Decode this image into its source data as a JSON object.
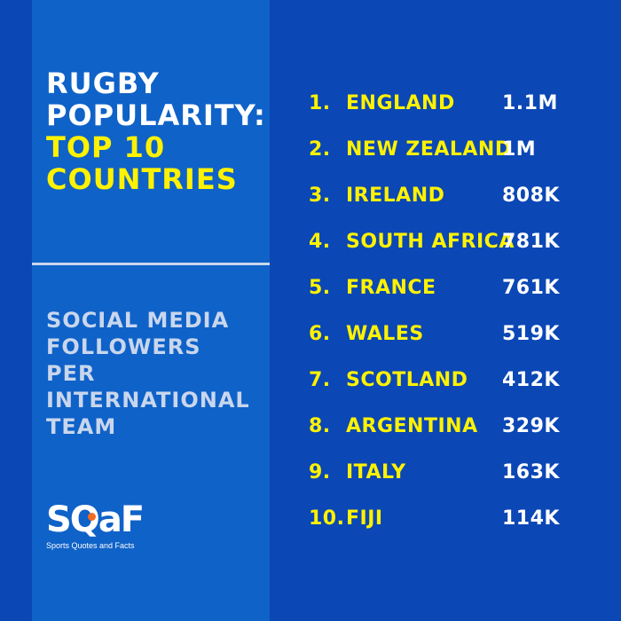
{
  "header": {
    "title_white": [
      "RUGBY",
      "POPULARITY:"
    ],
    "title_yellow": [
      "TOP 10",
      "COUNTRIES"
    ]
  },
  "subtitle": [
    "SOCIAL MEDIA",
    "FOLLOWERS",
    "PER",
    "INTERNATIONAL",
    "TEAM"
  ],
  "logo": {
    "mark": "SQaF",
    "tagline": "Sports Quotes and Facts"
  },
  "colors": {
    "background": "#0b47b5",
    "panel": "#0f62c8",
    "accent": "#fff200",
    "text": "#ffffff",
    "muted": "#c9d6ec"
  },
  "chart_data": {
    "type": "table",
    "title": "RUGBY POPULARITY: TOP 10 COUNTRIES",
    "subtitle": "SOCIAL MEDIA FOLLOWERS PER INTERNATIONAL TEAM",
    "rows": [
      {
        "rank": "1.",
        "country": "ENGLAND",
        "followers": "1.1M"
      },
      {
        "rank": "2.",
        "country": "NEW ZEALAND",
        "followers": "1M"
      },
      {
        "rank": "3.",
        "country": "IRELAND",
        "followers": "808K"
      },
      {
        "rank": "4.",
        "country": "SOUTH AFRICA",
        "followers": "781K"
      },
      {
        "rank": "5.",
        "country": "FRANCE",
        "followers": "761K"
      },
      {
        "rank": "6.",
        "country": "WALES",
        "followers": "519K"
      },
      {
        "rank": "7.",
        "country": "SCOTLAND",
        "followers": "412K"
      },
      {
        "rank": "8.",
        "country": "ARGENTINA",
        "followers": "329K"
      },
      {
        "rank": "9.",
        "country": "ITALY",
        "followers": "163K"
      },
      {
        "rank": "10.",
        "country": "FIJI",
        "followers": "114K"
      }
    ]
  }
}
